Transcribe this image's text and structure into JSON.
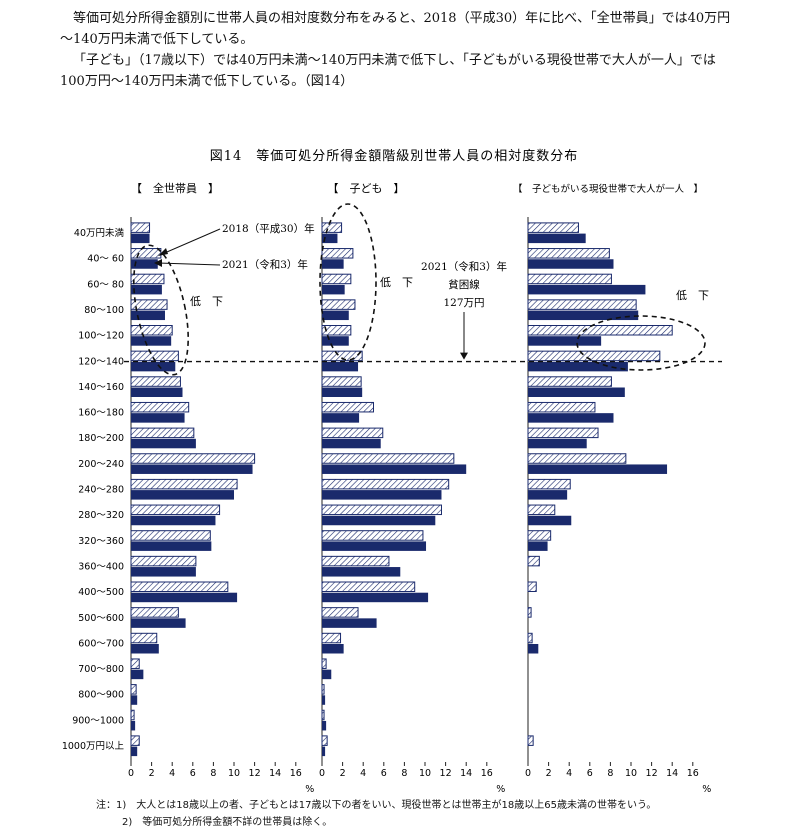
{
  "intro": {
    "para1": "等価可処分所得金額別に世帯人員の相対度数分布をみると、2018（平成30）年に比べ、「全世帯員」では40万円～140万円未満で低下している。",
    "para2": "「子ども」（17歳以下）では40万円未満～140万円未満で低下し、「子どもがいる現役世帯で大人が一人」では100万円～140万円未満で低下している。（図14）"
  },
  "notes": {
    "note1": "注：1)　大人とは18歳以上の者、子どもとは17歳以下の者をいい、現役世帯とは世帯主が18歳以上65歳未満の世帯をいう。",
    "note2": "2)　等価可処分所得金額不詳の世帯員は除く。"
  },
  "colors": {
    "navy": "#1a2a6c",
    "hatch": "#1a2a6c"
  },
  "chart_data": {
    "type": "bar",
    "orientation": "horizontal",
    "title": "図14　等価可処分所得金額階級別世帯人員の相対度数分布",
    "categories": [
      "40万円未満",
      "40～ 60",
      "60～ 80",
      "80～100",
      "100～120",
      "120～140",
      "140～160",
      "160～180",
      "180～200",
      "200～240",
      "240～280",
      "280～320",
      "320～360",
      "360～400",
      "400～500",
      "500～600",
      "600～700",
      "700～800",
      "800～900",
      "900～1000",
      "1000万円以上"
    ],
    "xlim": [
      0,
      16
    ],
    "xticks": [
      "0",
      "2",
      "4",
      "6",
      "8",
      "10",
      "12",
      "14",
      "16"
    ],
    "xunit": "%",
    "poverty_line": {
      "label_year": "2021（令和3）年",
      "label_name": "貧困線",
      "label_value": "127万円",
      "between": [
        "120～140",
        "140～160"
      ]
    },
    "panels": [
      {
        "title": "【　全世帯員　】",
        "annotation": "低　下",
        "legend_2018": "2018（平成30）年",
        "legend_2021": "2021（令和3）年",
        "series": [
          {
            "name": "2018（平成30）年",
            "values": [
              1.8,
              2.9,
              3.2,
              3.5,
              4.0,
              4.6,
              4.8,
              5.6,
              6.1,
              12.0,
              10.3,
              8.6,
              7.7,
              6.3,
              9.4,
              4.6,
              2.5,
              0.8,
              0.5,
              0.3,
              0.8
            ]
          },
          {
            "name": "2021（令和3）年",
            "values": [
              1.8,
              2.6,
              3.0,
              3.3,
              3.9,
              4.3,
              5.0,
              5.2,
              6.3,
              11.8,
              10.0,
              8.2,
              7.8,
              6.3,
              10.3,
              5.3,
              2.7,
              1.2,
              0.6,
              0.4,
              0.6
            ]
          }
        ]
      },
      {
        "title": "【　子ども　】",
        "annotation": "低　下",
        "series": [
          {
            "name": "2018（平成30）年",
            "values": [
              1.9,
              3.0,
              2.8,
              3.2,
              2.8,
              3.9,
              3.8,
              5.0,
              5.9,
              12.8,
              12.3,
              11.6,
              9.8,
              6.5,
              9.0,
              3.5,
              1.8,
              0.4,
              0.2,
              0.2,
              0.5
            ]
          },
          {
            "name": "2021（令和3）年",
            "values": [
              1.5,
              2.1,
              2.2,
              2.6,
              2.6,
              3.5,
              3.9,
              3.6,
              5.7,
              14.0,
              11.6,
              11.0,
              10.1,
              7.6,
              10.3,
              5.3,
              2.1,
              0.9,
              0.3,
              0.4,
              0.3
            ]
          }
        ]
      },
      {
        "title": "【　子どもがいる現役世帯で大人が一人　】",
        "annotation": "低　下",
        "series": [
          {
            "name": "2018（平成30）年",
            "values": [
              4.9,
              7.9,
              8.1,
              10.5,
              14.0,
              12.8,
              8.1,
              6.5,
              6.8,
              9.5,
              4.1,
              2.6,
              2.2,
              1.1,
              0.8,
              0.3,
              0.4,
              0.0,
              0.0,
              0.0,
              0.5
            ]
          },
          {
            "name": "2021（令和3）年",
            "values": [
              5.6,
              8.3,
              11.4,
              10.7,
              7.1,
              9.7,
              9.4,
              8.3,
              5.7,
              13.5,
              3.8,
              4.2,
              1.9,
              0.0,
              0.0,
              0.0,
              1.0,
              0.0,
              0.0,
              0.0,
              0.0
            ]
          }
        ]
      }
    ]
  }
}
